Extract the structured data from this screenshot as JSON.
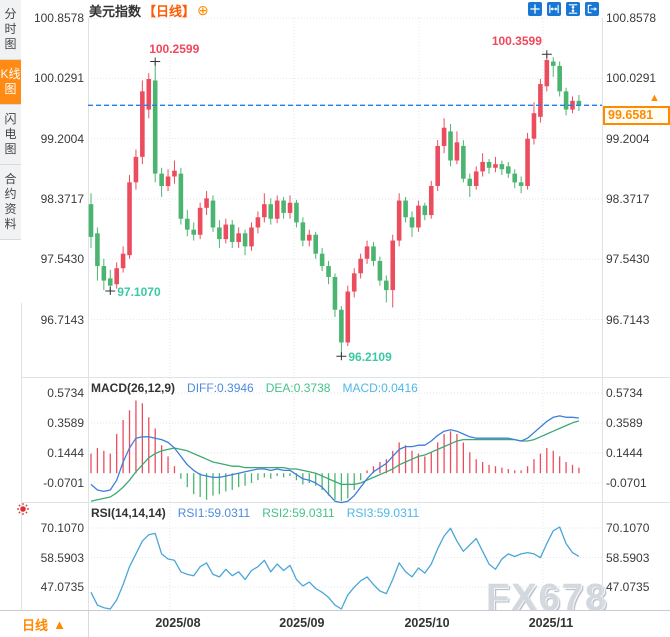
{
  "header": {
    "title": "美元指数",
    "period_tag": "【日线】",
    "add_icon": "⊕"
  },
  "sidebar": {
    "tabs": [
      {
        "label": "分时图",
        "active": false
      },
      {
        "label": "K线图",
        "active": true
      },
      {
        "label": "闪电图",
        "active": false
      },
      {
        "label": "合约资料",
        "active": false
      }
    ]
  },
  "toolbar": {
    "buttons": [
      "crosshair",
      "zoom-horizontal",
      "zoom-vertical",
      "exit-view"
    ]
  },
  "price_tag": {
    "value": "99.6581",
    "arrow": "▲"
  },
  "bottom_bar": {
    "period_label": "日线",
    "arrow": "▲"
  },
  "watermark": "FX678",
  "indicators": {
    "macd": {
      "name": "MACD(26,12,9)",
      "diff": "DIFF:0.3946",
      "dea": "DEA:0.3738",
      "macd": "MACD:0.0416"
    },
    "rsi": {
      "name": "RSI(14,14,14)",
      "rsi1": "RSI1:59.0311",
      "rsi2": "RSI2:59.0311",
      "rsi3": "RSI3:59.0311"
    }
  },
  "colors": {
    "up": "#eb4d5f",
    "down": "#4cb471",
    "accent_orange": "#ff8a00",
    "period_orange": "#ff5a00",
    "button_blue": "#1777d2",
    "diff_blue": "#4c8be0",
    "dea_green": "#46c28a",
    "macd_cyan": "#4cb8e8",
    "rsi1_blue": "#4c8be0",
    "rsi2_green": "#46c28a",
    "rsi3_cyan": "#4cb8e8",
    "diff_line": "#3f7fd9",
    "dea_line": "#3da973",
    "rsi_line": "#4aa6d8",
    "dashed_line": "#1f7ff2",
    "annotation_high": "#f0475c",
    "annotation_low": "#3cc8a4",
    "grid": "#e3e6eb",
    "border": "#dfe2e7",
    "axis_line": "#c8cbd1",
    "axis_text": "#3a3a3a",
    "watermark": "#d3d8df",
    "cross": "#333333",
    "sun_red": "#e03030"
  },
  "chart_data": {
    "type": "candlestick+indicators",
    "title": "美元指数 日线",
    "x_ticks": [
      {
        "label": "2025/08",
        "index": 12.3
      },
      {
        "label": "2025/09",
        "index": 31.6
      },
      {
        "label": "2025/10",
        "index": 51.1
      },
      {
        "label": "2025/11",
        "index": 70.4
      }
    ],
    "panels": [
      {
        "id": "main",
        "type": "candlestick",
        "y_ticks": [
          "100.8578",
          "100.0291",
          "99.2004",
          "98.3717",
          "97.5430",
          "96.7143"
        ],
        "current_price": 99.6581,
        "annotations": [
          {
            "index": 10,
            "pos": "high",
            "side": "left",
            "label": "100.2599"
          },
          {
            "index": 71,
            "pos": "high",
            "side": "right",
            "label": "100.3599"
          },
          {
            "index": 3,
            "pos": "low",
            "side": "left",
            "label": "97.1070"
          },
          {
            "index": 39,
            "pos": "low",
            "side": "left",
            "label": "96.2109"
          }
        ],
        "ohlc": [
          [
            98.3,
            98.45,
            97.7,
            97.85
          ],
          [
            97.9,
            97.98,
            97.25,
            97.45
          ],
          [
            97.45,
            97.55,
            97.12,
            97.25
          ],
          [
            97.28,
            97.4,
            97.107,
            97.18
          ],
          [
            97.2,
            97.5,
            97.14,
            97.42
          ],
          [
            97.42,
            97.72,
            97.36,
            97.62
          ],
          [
            97.6,
            98.7,
            97.55,
            98.6
          ],
          [
            98.6,
            99.05,
            98.5,
            98.95
          ],
          [
            98.95,
            100.0,
            98.85,
            99.85
          ],
          [
            99.6,
            100.1,
            99.48,
            100.02
          ],
          [
            100.0,
            100.2599,
            98.6,
            98.72
          ],
          [
            98.72,
            98.8,
            98.4,
            98.55
          ],
          [
            98.55,
            98.78,
            98.48,
            98.68
          ],
          [
            98.68,
            98.9,
            98.58,
            98.76
          ],
          [
            98.72,
            98.8,
            98.02,
            98.1
          ],
          [
            98.1,
            98.22,
            97.86,
            97.95
          ],
          [
            97.95,
            98.05,
            97.8,
            97.88
          ],
          [
            97.88,
            98.32,
            97.82,
            98.25
          ],
          [
            98.25,
            98.48,
            98.15,
            98.38
          ],
          [
            98.35,
            98.42,
            97.92,
            97.98
          ],
          [
            97.98,
            98.08,
            97.7,
            97.82
          ],
          [
            97.82,
            98.1,
            97.76,
            98.02
          ],
          [
            98.02,
            98.08,
            97.7,
            97.78
          ],
          [
            97.78,
            97.98,
            97.7,
            97.9
          ],
          [
            97.9,
            97.95,
            97.6,
            97.72
          ],
          [
            97.72,
            98.05,
            97.66,
            97.98
          ],
          [
            97.98,
            98.2,
            97.9,
            98.12
          ],
          [
            98.12,
            98.45,
            98.05,
            98.3
          ],
          [
            98.3,
            98.38,
            98.02,
            98.1
          ],
          [
            98.1,
            98.42,
            98.04,
            98.35
          ],
          [
            98.35,
            98.4,
            98.1,
            98.18
          ],
          [
            98.18,
            98.42,
            98.1,
            98.32
          ],
          [
            98.32,
            98.36,
            97.98,
            98.05
          ],
          [
            98.05,
            98.12,
            97.72,
            97.8
          ],
          [
            97.8,
            97.95,
            97.72,
            97.88
          ],
          [
            97.88,
            97.92,
            97.55,
            97.62
          ],
          [
            97.62,
            97.7,
            97.38,
            97.45
          ],
          [
            97.45,
            97.52,
            97.2,
            97.3
          ],
          [
            97.3,
            97.35,
            96.75,
            96.85
          ],
          [
            96.85,
            96.9,
            96.2109,
            96.4
          ],
          [
            96.4,
            97.18,
            96.35,
            97.1
          ],
          [
            97.1,
            97.42,
            97.02,
            97.35
          ],
          [
            97.35,
            97.62,
            97.28,
            97.55
          ],
          [
            97.55,
            97.8,
            97.48,
            97.72
          ],
          [
            97.72,
            97.78,
            97.45,
            97.52
          ],
          [
            97.52,
            97.58,
            97.18,
            97.25
          ],
          [
            97.25,
            97.32,
            96.95,
            97.12
          ],
          [
            97.12,
            97.88,
            96.88,
            97.8
          ],
          [
            97.8,
            98.45,
            97.72,
            98.35
          ],
          [
            98.35,
            98.4,
            98.05,
            98.12
          ],
          [
            98.12,
            98.2,
            97.85,
            97.98
          ],
          [
            97.98,
            98.35,
            97.92,
            98.28
          ],
          [
            98.28,
            98.32,
            98.08,
            98.15
          ],
          [
            98.15,
            98.62,
            98.1,
            98.55
          ],
          [
            98.55,
            99.18,
            98.48,
            99.1
          ],
          [
            99.1,
            99.48,
            99.0,
            99.35
          ],
          [
            99.3,
            99.4,
            98.82,
            98.9
          ],
          [
            98.9,
            99.3,
            98.85,
            99.15
          ],
          [
            99.1,
            99.18,
            98.6,
            98.65
          ],
          [
            98.65,
            98.72,
            98.4,
            98.55
          ],
          [
            98.55,
            98.82,
            98.5,
            98.75
          ],
          [
            98.75,
            99.0,
            98.68,
            98.88
          ],
          [
            98.88,
            98.92,
            98.72,
            98.8
          ],
          [
            98.8,
            98.95,
            98.74,
            98.85
          ],
          [
            98.85,
            98.9,
            98.7,
            98.78
          ],
          [
            98.82,
            98.88,
            98.66,
            98.72
          ],
          [
            98.72,
            98.78,
            98.52,
            98.6
          ],
          [
            98.6,
            98.68,
            98.45,
            98.55
          ],
          [
            98.55,
            99.28,
            98.5,
            99.2
          ],
          [
            99.2,
            99.7,
            99.12,
            99.55
          ],
          [
            99.5,
            100.02,
            99.42,
            99.95
          ],
          [
            99.92,
            100.3599,
            99.85,
            100.28
          ],
          [
            100.26,
            100.32,
            100.05,
            100.2
          ],
          [
            100.2,
            100.26,
            99.78,
            99.85
          ],
          [
            99.85,
            99.9,
            99.52,
            99.6
          ],
          [
            99.6,
            99.78,
            99.55,
            99.72
          ],
          [
            99.72,
            99.8,
            99.58,
            99.6581
          ]
        ]
      },
      {
        "id": "macd",
        "type": "macd",
        "y_ticks": [
          "0.5734",
          "0.3589",
          "0.1444",
          "-0.0701"
        ],
        "hist": [
          0.14,
          0.18,
          0.16,
          0.14,
          0.28,
          0.38,
          0.45,
          0.52,
          0.5,
          0.4,
          0.32,
          0.2,
          0.12,
          0.05,
          -0.04,
          -0.1,
          -0.15,
          -0.17,
          -0.19,
          -0.16,
          -0.15,
          -0.13,
          -0.12,
          -0.1,
          -0.09,
          -0.07,
          -0.05,
          -0.03,
          -0.04,
          -0.02,
          -0.03,
          -0.02,
          -0.05,
          -0.08,
          -0.07,
          -0.09,
          -0.12,
          -0.16,
          -0.19,
          -0.2,
          -0.18,
          -0.12,
          -0.05,
          0.02,
          0.05,
          0.08,
          0.1,
          0.16,
          0.22,
          0.2,
          0.16,
          0.14,
          0.12,
          0.15,
          0.22,
          0.28,
          0.3,
          0.28,
          0.22,
          0.15,
          0.1,
          0.08,
          0.06,
          0.05,
          0.04,
          0.03,
          0.02,
          0.02,
          0.05,
          0.1,
          0.14,
          0.18,
          0.16,
          0.12,
          0.08,
          0.06,
          0.04
        ],
        "diff": [
          -0.08,
          -0.12,
          -0.13,
          -0.12,
          -0.05,
          0.08,
          0.18,
          0.25,
          0.26,
          0.26,
          0.25,
          0.24,
          0.22,
          0.18,
          0.12,
          0.06,
          0.02,
          -0.01,
          -0.02,
          -0.03,
          -0.03,
          -0.02,
          -0.01,
          0.0,
          0.01,
          0.02,
          0.03,
          0.03,
          0.02,
          0.03,
          0.02,
          0.02,
          -0.01,
          -0.04,
          -0.05,
          -0.07,
          -0.1,
          -0.15,
          -0.2,
          -0.21,
          -0.2,
          -0.16,
          -0.1,
          -0.04,
          0.01,
          0.04,
          0.07,
          0.12,
          0.17,
          0.19,
          0.19,
          0.2,
          0.2,
          0.23,
          0.27,
          0.3,
          0.31,
          0.3,
          0.28,
          0.26,
          0.25,
          0.25,
          0.25,
          0.25,
          0.25,
          0.25,
          0.24,
          0.23,
          0.25,
          0.29,
          0.33,
          0.37,
          0.4,
          0.41,
          0.4,
          0.4,
          0.3946
        ],
        "dea": [
          -0.2,
          -0.19,
          -0.18,
          -0.17,
          -0.14,
          -0.1,
          -0.05,
          0.01,
          0.06,
          0.11,
          0.14,
          0.16,
          0.17,
          0.18,
          0.17,
          0.16,
          0.14,
          0.12,
          0.1,
          0.08,
          0.07,
          0.06,
          0.05,
          0.05,
          0.04,
          0.04,
          0.04,
          0.04,
          0.04,
          0.04,
          0.04,
          0.03,
          0.03,
          0.02,
          0.01,
          0.0,
          -0.02,
          -0.04,
          -0.06,
          -0.08,
          -0.08,
          -0.08,
          -0.07,
          -0.05,
          -0.03,
          -0.01,
          0.01,
          0.03,
          0.06,
          0.08,
          0.1,
          0.12,
          0.13,
          0.15,
          0.17,
          0.19,
          0.21,
          0.23,
          0.24,
          0.24,
          0.24,
          0.24,
          0.24,
          0.24,
          0.24,
          0.24,
          0.24,
          0.23,
          0.23,
          0.24,
          0.26,
          0.28,
          0.3,
          0.32,
          0.34,
          0.36,
          0.3738
        ]
      },
      {
        "id": "rsi",
        "type": "line",
        "y_ticks": [
          "70.1070",
          "58.5903",
          "47.0735"
        ],
        "rsi": [
          45,
          40,
          39,
          38.5,
          42,
          48,
          55,
          60,
          65,
          67.5,
          68,
          60,
          58,
          57.5,
          53,
          52,
          51.5,
          55,
          56.5,
          52,
          51,
          54,
          51.5,
          53,
          50,
          53.5,
          55,
          57.5,
          53,
          56,
          53.5,
          55.5,
          50,
          47.5,
          49,
          46.5,
          45,
          43,
          40,
          38.5,
          44,
          47,
          49.5,
          51,
          48,
          45.5,
          44.5,
          50,
          56.5,
          53,
          51,
          54.5,
          52.5,
          56,
          62,
          67,
          70,
          65,
          61,
          63.5,
          66,
          61,
          56,
          54,
          58,
          60,
          59,
          60,
          60.5,
          60,
          58.5,
          64,
          69,
          70.5,
          64,
          60.5,
          59.0311
        ]
      }
    ]
  }
}
